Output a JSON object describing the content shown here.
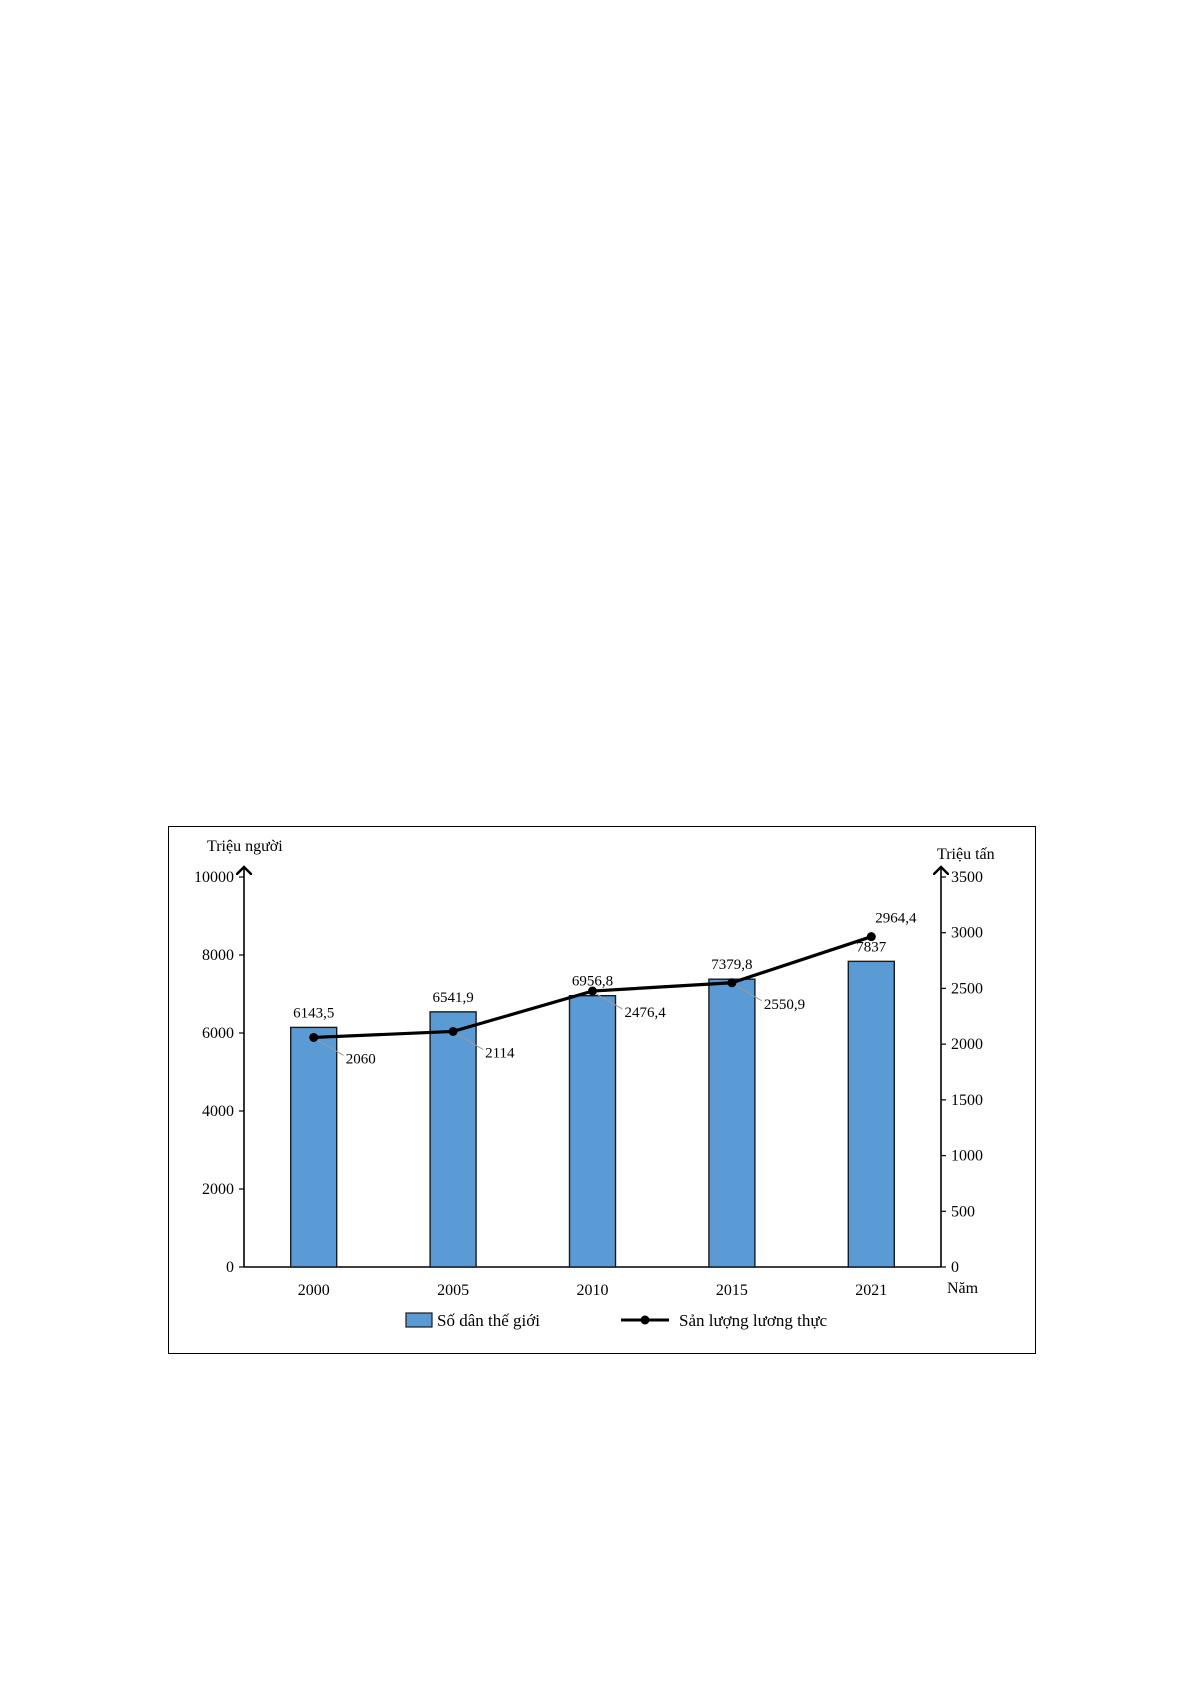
{
  "chart_data": {
    "type": "bar+line",
    "categories": [
      "2000",
      "2005",
      "2010",
      "2015",
      "2021"
    ],
    "xlabel": "Năm",
    "y_left": {
      "label": "Triệu người",
      "ylim": [
        0,
        10000
      ],
      "ticks": [
        0,
        2000,
        4000,
        6000,
        8000,
        10000
      ]
    },
    "y_right": {
      "label": "Triệu tấn",
      "ylim": [
        0,
        3500
      ],
      "ticks": [
        0,
        500,
        1000,
        1500,
        2000,
        2500,
        3000,
        3500
      ]
    },
    "series": [
      {
        "name": "Số dân thế giới",
        "kind": "bar",
        "axis": "left",
        "color": "#5b9bd5",
        "values": [
          6143.5,
          6541.9,
          6956.8,
          7379.8,
          7837
        ],
        "labels": [
          "6143,5",
          "6541,9",
          "6956,8",
          "7379,8",
          "7837"
        ]
      },
      {
        "name": "Sản lượng lương thực",
        "kind": "line",
        "axis": "right",
        "color": "#000000",
        "values": [
          2060,
          2114,
          2476.4,
          2550.9,
          2964.4
        ],
        "labels": [
          "2060",
          "2114",
          "2476,4",
          "2550,9",
          "2964,4"
        ]
      }
    ],
    "grid": false,
    "legend": "bottom"
  }
}
